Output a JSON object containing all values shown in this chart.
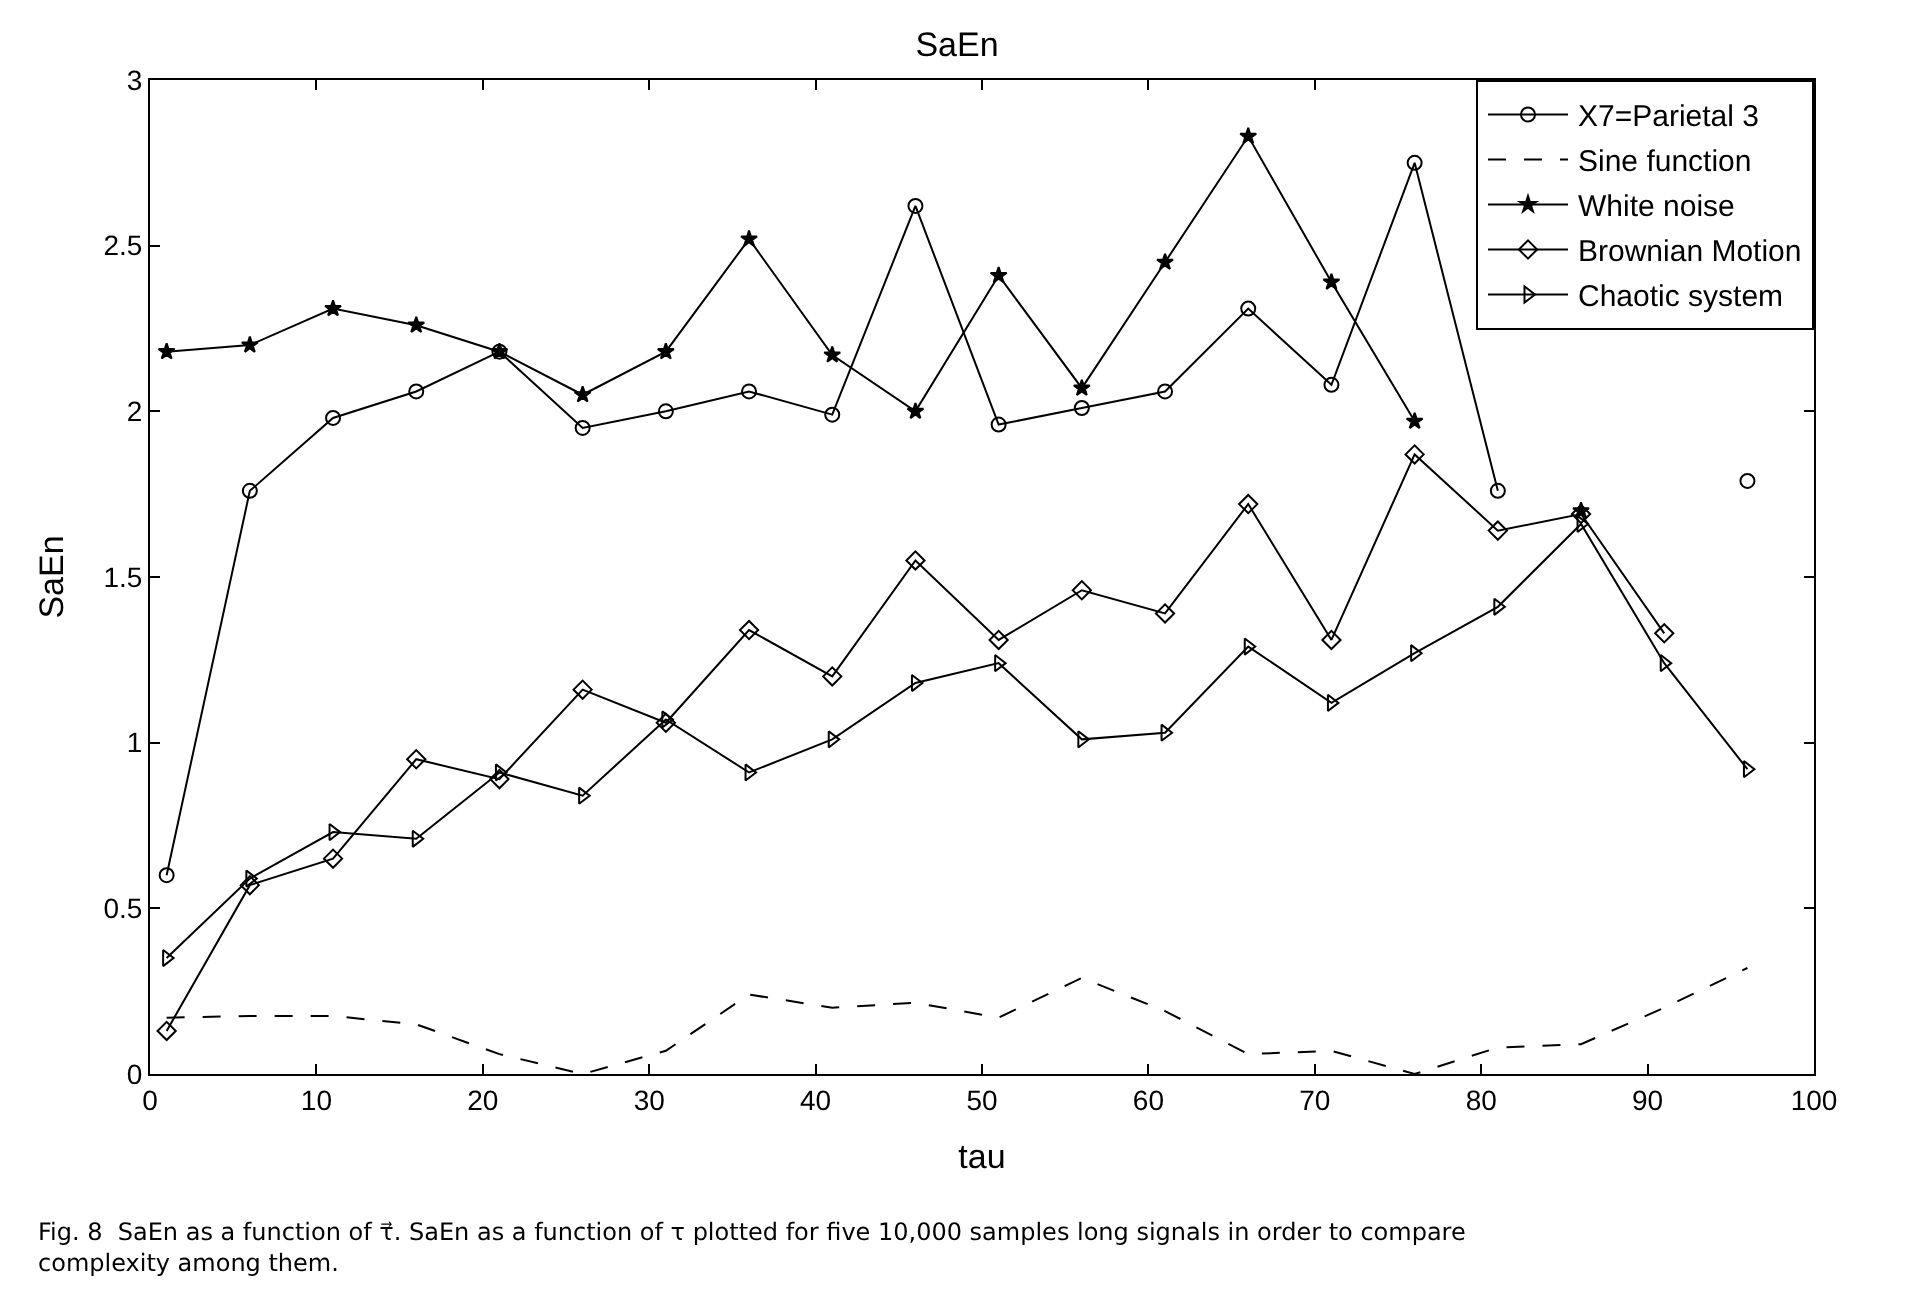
{
  "chart_data": {
    "type": "line",
    "title": "SaEn",
    "xlabel": "tau",
    "ylabel": "SaEn",
    "x": [
      1,
      6,
      11,
      16,
      21,
      26,
      31,
      36,
      41,
      46,
      51,
      56,
      61,
      66,
      71,
      76,
      81,
      86,
      91,
      96
    ],
    "series": [
      {
        "name": "X7=Parietal 3",
        "color": "#000000",
        "marker": "circle",
        "line_style": "solid",
        "values": [
          0.6,
          1.76,
          1.98,
          2.06,
          2.18,
          1.95,
          2.0,
          2.06,
          1.99,
          2.62,
          1.96,
          2.01,
          2.06,
          2.31,
          2.08,
          2.75,
          1.76,
          null,
          null,
          1.79
        ]
      },
      {
        "name": "Sine function",
        "color": "#000000",
        "marker": "none",
        "line_style": "dashed",
        "values": [
          0.17,
          0.175,
          0.175,
          0.15,
          0.06,
          0.0,
          0.07,
          0.24,
          0.2,
          0.215,
          0.17,
          0.29,
          0.19,
          0.06,
          0.07,
          0.0,
          0.08,
          0.09,
          0.2,
          0.32
        ]
      },
      {
        "name": "White noise",
        "color": "#000000",
        "marker": "star",
        "line_style": "solid",
        "values": [
          2.18,
          2.2,
          2.31,
          2.26,
          2.18,
          2.05,
          2.18,
          2.52,
          2.17,
          2.0,
          2.41,
          2.07,
          2.45,
          2.83,
          2.39,
          1.97,
          null,
          1.7,
          null,
          null
        ]
      },
      {
        "name": "Brownian Motion",
        "color": "#000000",
        "marker": "diamond",
        "line_style": "solid",
        "values": [
          0.13,
          0.57,
          0.65,
          0.95,
          0.89,
          1.16,
          1.06,
          1.34,
          1.2,
          1.55,
          1.31,
          1.46,
          1.39,
          1.72,
          1.31,
          1.87,
          1.64,
          1.69,
          1.33,
          null
        ]
      },
      {
        "name": "Chaotic system",
        "color": "#000000",
        "marker": "triangle",
        "line_style": "solid",
        "values": [
          0.35,
          0.59,
          0.73,
          0.71,
          0.91,
          0.84,
          1.07,
          0.91,
          1.01,
          1.18,
          1.24,
          1.01,
          1.03,
          1.29,
          1.12,
          1.27,
          1.41,
          1.66,
          1.24,
          0.92
        ]
      }
    ],
    "xlim": [
      0,
      100
    ],
    "xticks": [
      0,
      10,
      20,
      30,
      40,
      50,
      60,
      70,
      80,
      90,
      100
    ],
    "ylim": [
      0,
      3
    ],
    "yticks": [
      0,
      0.5,
      1,
      1.5,
      2,
      2.5,
      3
    ],
    "legend": "top right",
    "annotations": [
      "Fig. 8  SaEn as a function of τ⃗. SaEn as a function of τ plotted for five 10,000 samples long signals in order to compare complexity among them."
    ]
  }
}
